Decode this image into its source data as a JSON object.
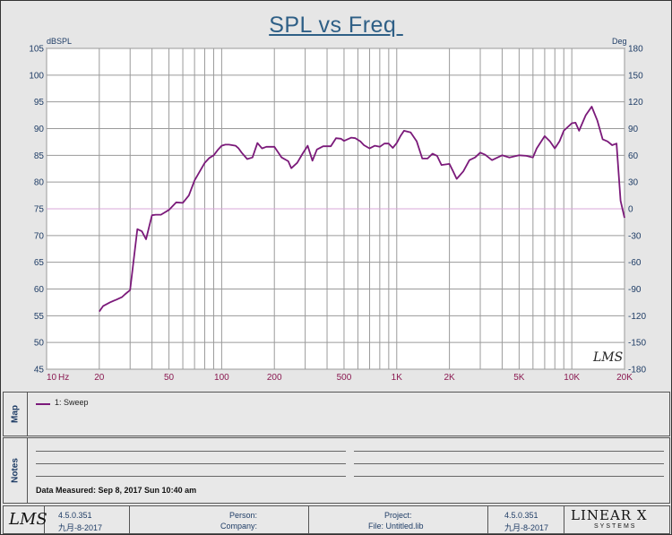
{
  "chart_data": {
    "type": "line",
    "title": "SPL vs Freq ",
    "y_unit_left": "dBSPL",
    "y_unit_right": "Deg",
    "x_unit": "Hz",
    "x_scale": "log",
    "xlim": [
      10,
      20000
    ],
    "ylim": [
      45,
      105
    ],
    "ylim_right": [
      -180,
      180
    ],
    "grid": true,
    "y_ticks": [
      "105",
      "100",
      "95",
      "90",
      "85",
      "80",
      "75",
      "70",
      "65",
      "60",
      "55",
      "50",
      "45"
    ],
    "y_ticks_right": [
      "180",
      "150",
      "120",
      "90",
      "60",
      "30",
      "0",
      "-30",
      "-60",
      "-90",
      "-120",
      "-150",
      "-180"
    ],
    "x_tick_labels": [
      {
        "f": 10,
        "label": "10"
      },
      {
        "f": 20,
        "label": "20"
      },
      {
        "f": 50,
        "label": "50"
      },
      {
        "f": 100,
        "label": "100"
      },
      {
        "f": 200,
        "label": "200"
      },
      {
        "f": 500,
        "label": "500"
      },
      {
        "f": 1000,
        "label": "1K"
      },
      {
        "f": 2000,
        "label": "2K"
      },
      {
        "f": 5000,
        "label": "5K"
      },
      {
        "f": 10000,
        "label": "10K"
      },
      {
        "f": 20000,
        "label": "20K"
      }
    ],
    "reference_line": {
      "value": 75,
      "color": "#d9a7d9"
    },
    "series": [
      {
        "name": "1: Sweep",
        "color": "#7b1a7a",
        "x": [
          20,
          21,
          23,
          25,
          27,
          28,
          30,
          33,
          35,
          37,
          40,
          42,
          45,
          50,
          55,
          60,
          65,
          70,
          75,
          80,
          85,
          90,
          95,
          100,
          105,
          110,
          120,
          125,
          130,
          140,
          150,
          160,
          170,
          180,
          200,
          220,
          240,
          250,
          270,
          290,
          310,
          330,
          350,
          380,
          400,
          420,
          450,
          480,
          500,
          550,
          580,
          620,
          650,
          700,
          750,
          800,
          850,
          900,
          950,
          1000,
          1050,
          1100,
          1200,
          1300,
          1400,
          1500,
          1600,
          1700,
          1800,
          2000,
          2100,
          2200,
          2400,
          2600,
          2800,
          3000,
          3200,
          3500,
          4000,
          4400,
          5000,
          5500,
          6000,
          6300,
          7000,
          7500,
          8000,
          8500,
          9000,
          10000,
          10500,
          11000,
          12000,
          13000,
          14000,
          15000,
          16000,
          17000,
          18000,
          19000,
          20000
        ],
        "y": [
          55.8,
          56.8,
          57.5,
          58,
          58.5,
          59,
          59.8,
          71.2,
          70.8,
          69.3,
          73.8,
          73.9,
          73.9,
          74.8,
          76.2,
          76.1,
          77.5,
          80.3,
          82,
          83.6,
          84.5,
          85,
          86,
          86.8,
          87,
          87,
          86.8,
          86.3,
          85.5,
          84.3,
          84.6,
          87.3,
          86.3,
          86.6,
          86.6,
          84.6,
          83.9,
          82.6,
          83.6,
          85.3,
          86.8,
          84,
          86.1,
          86.7,
          86.7,
          86.7,
          88.2,
          88.1,
          87.7,
          88.3,
          88.2,
          87.6,
          86.9,
          86.3,
          86.8,
          86.6,
          87.2,
          87.2,
          86.4,
          87.3,
          88.6,
          89.6,
          89.3,
          87.6,
          84.4,
          84.4,
          85.3,
          84.9,
          83.2,
          83.4,
          82,
          80.6,
          82,
          84.1,
          84.6,
          85.5,
          85.1,
          84.1,
          85,
          84.6,
          85,
          84.9,
          84.6,
          86.3,
          88.6,
          87.6,
          86.3,
          87.6,
          89.6,
          91,
          91.1,
          89.6,
          92.5,
          94.1,
          91.5,
          88,
          87.6,
          86.9,
          87.2,
          76.5,
          73.3
        ]
      }
    ]
  },
  "map": {
    "label": "Map",
    "legend": "1: Sweep"
  },
  "notes": {
    "label": "Notes",
    "data_measured": "Data Measured: Sep 8, 2017 Sun 10:40 am"
  },
  "watermark": "LMS",
  "footer": {
    "logo_left": "LMS",
    "version_left": "4.5.0.351",
    "date_left": "九月-8-2017",
    "person_label": "Person:",
    "company_label": "Company:",
    "project_label": "Project:",
    "file_label": "File: Untitled.lib",
    "version_right": "4.5.0.351",
    "date_right": "九月-8-2017",
    "logo_right": "LINEAR X",
    "logo_right_sub": "SYSTEMS"
  }
}
